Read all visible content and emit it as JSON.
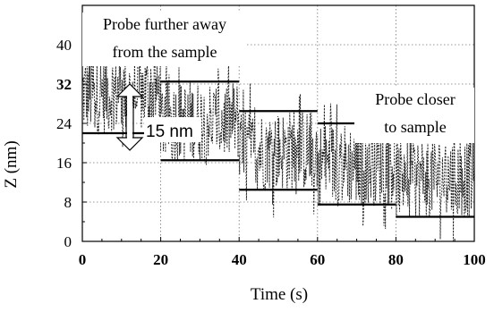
{
  "chart_data": {
    "type": "line",
    "xlabel": "Time (s)",
    "ylabel": "Z (nm)",
    "xlim": [
      0,
      100
    ],
    "ylim": [
      0,
      48
    ],
    "x_ticks": [
      0,
      20,
      40,
      60,
      80,
      100
    ],
    "y_ticks": [
      0,
      8,
      16,
      24,
      32,
      40
    ],
    "y_tick_bold": [
      32
    ],
    "grid": true,
    "grid_style": "dotted",
    "signal_color": "#1a1a1a",
    "segments": [
      {
        "x": [
          0,
          20
        ],
        "upper": 38.5,
        "lower": 22.0,
        "noise_min": 15.5,
        "noise_max": 44.0
      },
      {
        "x": [
          20,
          40
        ],
        "upper": 32.5,
        "lower": 16.5,
        "noise_min": 12.0,
        "noise_max": 38.0
      },
      {
        "x": [
          40,
          60
        ],
        "upper": 26.5,
        "lower": 10.5,
        "noise_min": 4.5,
        "noise_max": 33.0
      },
      {
        "x": [
          60,
          80
        ],
        "upper": 24.0,
        "lower": 7.5,
        "noise_min": 1.5,
        "noise_max": 30.0
      },
      {
        "x": [
          80,
          100
        ],
        "upper": 21.0,
        "lower": 5.0,
        "noise_min": 0.0,
        "noise_max": 25.5
      }
    ],
    "annotations": {
      "far_line1": "Probe further away",
      "far_line2": "from the sample",
      "close_line1": "Probe closer",
      "close_line2": "to sample",
      "gap_label": "15 nm"
    }
  }
}
